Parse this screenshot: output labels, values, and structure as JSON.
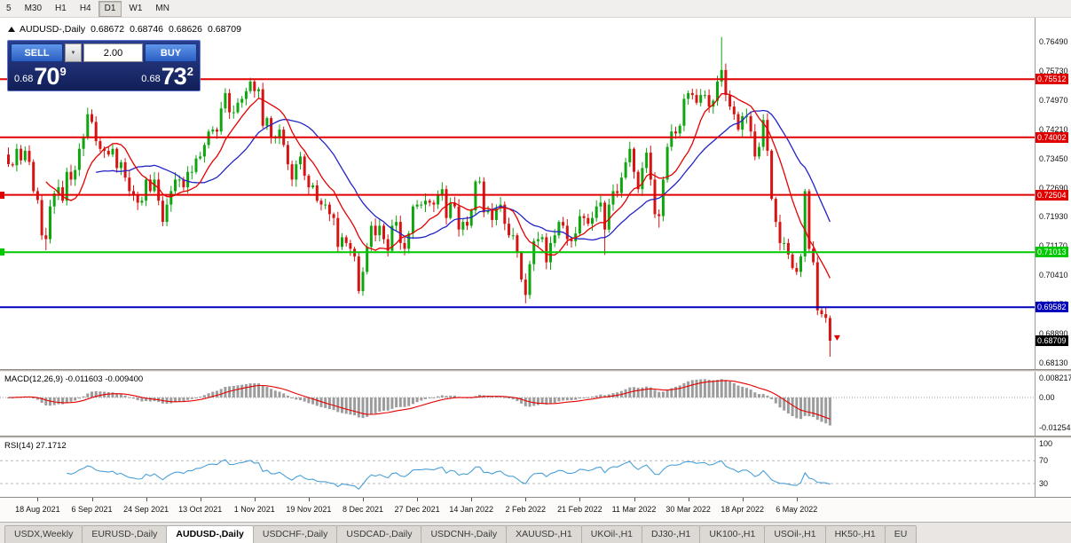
{
  "toolbar": {
    "timeframes": [
      {
        "label": "5",
        "active": false
      },
      {
        "label": "M30",
        "active": false
      },
      {
        "label": "H1",
        "active": false
      },
      {
        "label": "H4",
        "active": false
      },
      {
        "label": "D1",
        "active": true
      },
      {
        "label": "W1",
        "active": false
      },
      {
        "label": "MN",
        "active": false
      }
    ]
  },
  "chart": {
    "title": "AUDUSD-,Daily",
    "ohlc": {
      "open": "0.68672",
      "high": "0.68746",
      "low": "0.68626",
      "close": "0.68709"
    }
  },
  "trade_panel": {
    "sell_label": "SELL",
    "buy_label": "BUY",
    "volume": "2.00",
    "dropdown_icon": "▼",
    "sell_price": {
      "prefix": "0.68",
      "main": "70",
      "sup": "9"
    },
    "buy_price": {
      "prefix": "0.68",
      "main": "73",
      "sup": "2"
    }
  },
  "chart_data": {
    "type": "candlestick",
    "symbol": "AUDUSD-",
    "timeframe": "Daily",
    "x_labels": [
      "18 Aug 2021",
      "6 Sep 2021",
      "24 Sep 2021",
      "13 Oct 2021",
      "1 Nov 2021",
      "19 Nov 2021",
      "8 Dec 2021",
      "27 Dec 2021",
      "14 Jan 2022",
      "2 Feb 2022",
      "21 Feb 2022",
      "11 Mar 2022",
      "30 Mar 2022",
      "18 Apr 2022",
      "6 May 2022"
    ],
    "label_start_index": 7,
    "label_step": 13,
    "y_axis": {
      "ticks": [
        "0.76490",
        "0.75730",
        "0.74970",
        "0.74210",
        "0.73450",
        "0.72690",
        "0.71930",
        "0.71170",
        "0.70410",
        "0.69650",
        "0.68890",
        "0.68130"
      ],
      "top_price": 0.7711,
      "bottom_price": 0.6797
    },
    "first_open": 0.7355,
    "closes": [
      0.733,
      0.7327,
      0.737,
      0.734,
      0.7365,
      0.7336,
      0.726,
      0.7237,
      0.7145,
      0.7135,
      0.722,
      0.7254,
      0.727,
      0.7235,
      0.731,
      0.729,
      0.7315,
      0.737,
      0.74,
      0.746,
      0.744,
      0.739,
      0.737,
      0.7365,
      0.7355,
      0.737,
      0.732,
      0.7335,
      0.7295,
      0.726,
      0.725,
      0.723,
      0.7235,
      0.729,
      0.726,
      0.729,
      0.7235,
      0.718,
      0.7225,
      0.726,
      0.729,
      0.729,
      0.727,
      0.731,
      0.731,
      0.7345,
      0.735,
      0.738,
      0.7415,
      0.742,
      0.7415,
      0.7475,
      0.7515,
      0.7465,
      0.7465,
      0.749,
      0.75,
      0.752,
      0.7545,
      0.752,
      0.7525,
      0.743,
      0.745,
      0.74,
      0.74,
      0.742,
      0.738,
      0.733,
      0.729,
      0.733,
      0.735,
      0.73,
      0.727,
      0.7275,
      0.7235,
      0.7225,
      0.7225,
      0.72,
      0.719,
      0.7115,
      0.714,
      0.7125,
      0.711,
      0.709,
      0.7,
      0.705,
      0.7115,
      0.717,
      0.7145,
      0.717,
      0.7135,
      0.7105,
      0.717,
      0.718,
      0.7125,
      0.711,
      0.715,
      0.722,
      0.7225,
      0.7225,
      0.7235,
      0.723,
      0.7225,
      0.725,
      0.7265,
      0.719,
      0.723,
      0.722,
      0.716,
      0.718,
      0.717,
      0.721,
      0.7285,
      0.7285,
      0.7205,
      0.721,
      0.7185,
      0.7215,
      0.7225,
      0.7175,
      0.7145,
      0.7145,
      0.71,
      0.703,
      0.699,
      0.707,
      0.713,
      0.7135,
      0.714,
      0.7075,
      0.7125,
      0.7145,
      0.718,
      0.717,
      0.7135,
      0.713,
      0.715,
      0.7195,
      0.719,
      0.7175,
      0.719,
      0.722,
      0.723,
      0.716,
      0.7225,
      0.726,
      0.7255,
      0.7295,
      0.7335,
      0.737,
      0.731,
      0.7265,
      0.732,
      0.736,
      0.729,
      0.72,
      0.7195,
      0.729,
      0.7375,
      0.7415,
      0.741,
      0.743,
      0.75,
      0.7515,
      0.751,
      0.749,
      0.751,
      0.751,
      0.748,
      0.7495,
      0.7545,
      0.7575,
      0.751,
      0.748,
      0.746,
      0.742,
      0.7455,
      0.7455,
      0.7415,
      0.735,
      0.7375,
      0.7445,
      0.7365,
      0.724,
      0.718,
      0.7125,
      0.7125,
      0.7095,
      0.706,
      0.705,
      0.709,
      0.726,
      0.711,
      0.7075,
      0.695,
      0.694,
      0.693,
      0.68709
    ],
    "wick_overrides": {
      "9": {
        "low": 0.7106
      },
      "19": {
        "high": 0.7477
      },
      "58": {
        "high": 0.7555
      },
      "84": {
        "low": 0.6993
      },
      "124": {
        "low": 0.6968
      },
      "143": {
        "low": 0.7094
      },
      "156": {
        "low": 0.7165
      },
      "171": {
        "high": 0.7661
      },
      "191": {
        "high": 0.7266
      },
      "197": {
        "low": 0.6829
      }
    },
    "hlines": [
      {
        "price": 0.75512,
        "label": "0.75512",
        "color": "#e00000",
        "left_tag": false
      },
      {
        "price": 0.74002,
        "label": "0.74002",
        "color": "#e00000",
        "left_tag": false
      },
      {
        "price": 0.72504,
        "label": "0.72504",
        "color": "#e00000",
        "left_tag": true
      },
      {
        "price": 0.71013,
        "label": "0.71013",
        "color": "#00c800",
        "left_tag": true
      },
      {
        "price": 0.69582,
        "label": "0.69582",
        "color": "#0000bb",
        "left_tag": false
      }
    ],
    "current_price": {
      "value": 0.68709,
      "label": "0.68709",
      "tag_color": "#000000"
    },
    "ma": [
      {
        "period": 22,
        "color": "#2323c8"
      },
      {
        "period": 10,
        "color": "#e60000"
      }
    ],
    "colors": {
      "bull": "#0fa50f",
      "bear": "#d61414",
      "histogram": "#9c9c9c",
      "rsi_line": "#4aa0d8"
    },
    "macd": {
      "label": "MACD(12,26,9)  -0.011603  -0.009400",
      "fast": 12,
      "slow": 26,
      "signal": 9,
      "signal_color": "#e60000",
      "axis": [
        {
          "v": 0.008217,
          "label": "0.008217"
        },
        {
          "v": 0,
          "label": "0.00"
        },
        {
          "v": -0.012545,
          "label": "-0.012545"
        }
      ]
    },
    "rsi": {
      "label": "RSI(14) 27.1712",
      "period": 14,
      "levels": [
        {
          "v": 100,
          "label": "100",
          "dashed": false
        },
        {
          "v": 70,
          "label": "70",
          "dashed": true
        },
        {
          "v": 30,
          "label": "30",
          "dashed": true
        }
      ]
    },
    "sell_arrow_price": 0.6885
  },
  "tabs": {
    "active_index": 2,
    "items": [
      "USDX,Weekly",
      "EURUSD-,Daily",
      "AUDUSD-,Daily",
      "USDCHF-,Daily",
      "USDCAD-,Daily",
      "USDCNH-,Daily",
      "XAUUSD-,H1",
      "UKOil-,H1",
      "DJ30-,H1",
      "UK100-,H1",
      "USOil-,H1",
      "HK50-,H1",
      "EU"
    ]
  }
}
